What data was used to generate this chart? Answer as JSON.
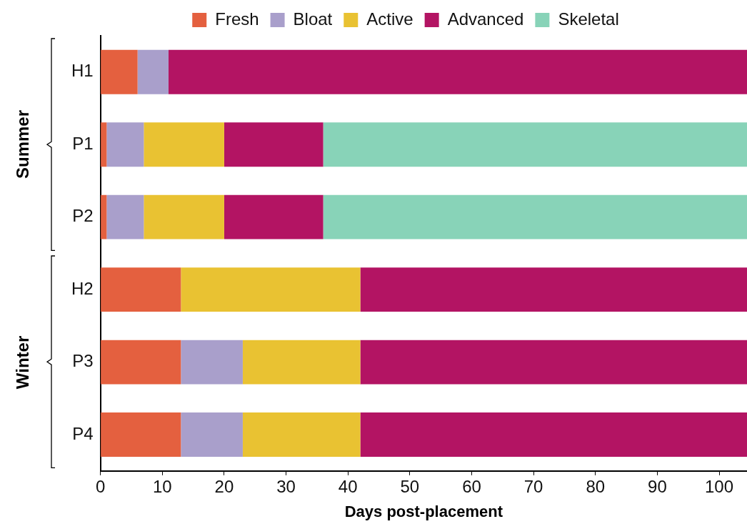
{
  "chart_data": {
    "type": "bar",
    "orientation": "horizontal",
    "stacked": true,
    "xlabel": "Days post-placement",
    "categories": [
      "H1",
      "P1",
      "P2",
      "H2",
      "P3",
      "P4"
    ],
    "series": [
      {
        "name": "Fresh",
        "color": "#e4603f",
        "values": [
          6,
          1,
          1,
          13,
          13,
          13
        ]
      },
      {
        "name": "Bloat",
        "color": "#a99fcb",
        "values": [
          5,
          6,
          6,
          null,
          10,
          10
        ]
      },
      {
        "name": "Active",
        "color": "#e9c232",
        "values": [
          null,
          13,
          13,
          29,
          19,
          19
        ]
      },
      {
        "name": "Advanced",
        "color": "#b31463",
        "values": [
          93.5,
          16,
          16,
          62.5,
          62.5,
          62.5
        ]
      },
      {
        "name": "Skeletal",
        "color": "#88d3b8",
        "values": [
          null,
          68.5,
          68.5,
          null,
          null,
          null
        ]
      }
    ],
    "xlim": [
      0,
      104.5
    ],
    "xticks": [
      0,
      10,
      20,
      30,
      40,
      50,
      60,
      70,
      80,
      90,
      100
    ],
    "annotations": [
      "Summer",
      "Winter"
    ],
    "legend": "top",
    "grid": false
  }
}
